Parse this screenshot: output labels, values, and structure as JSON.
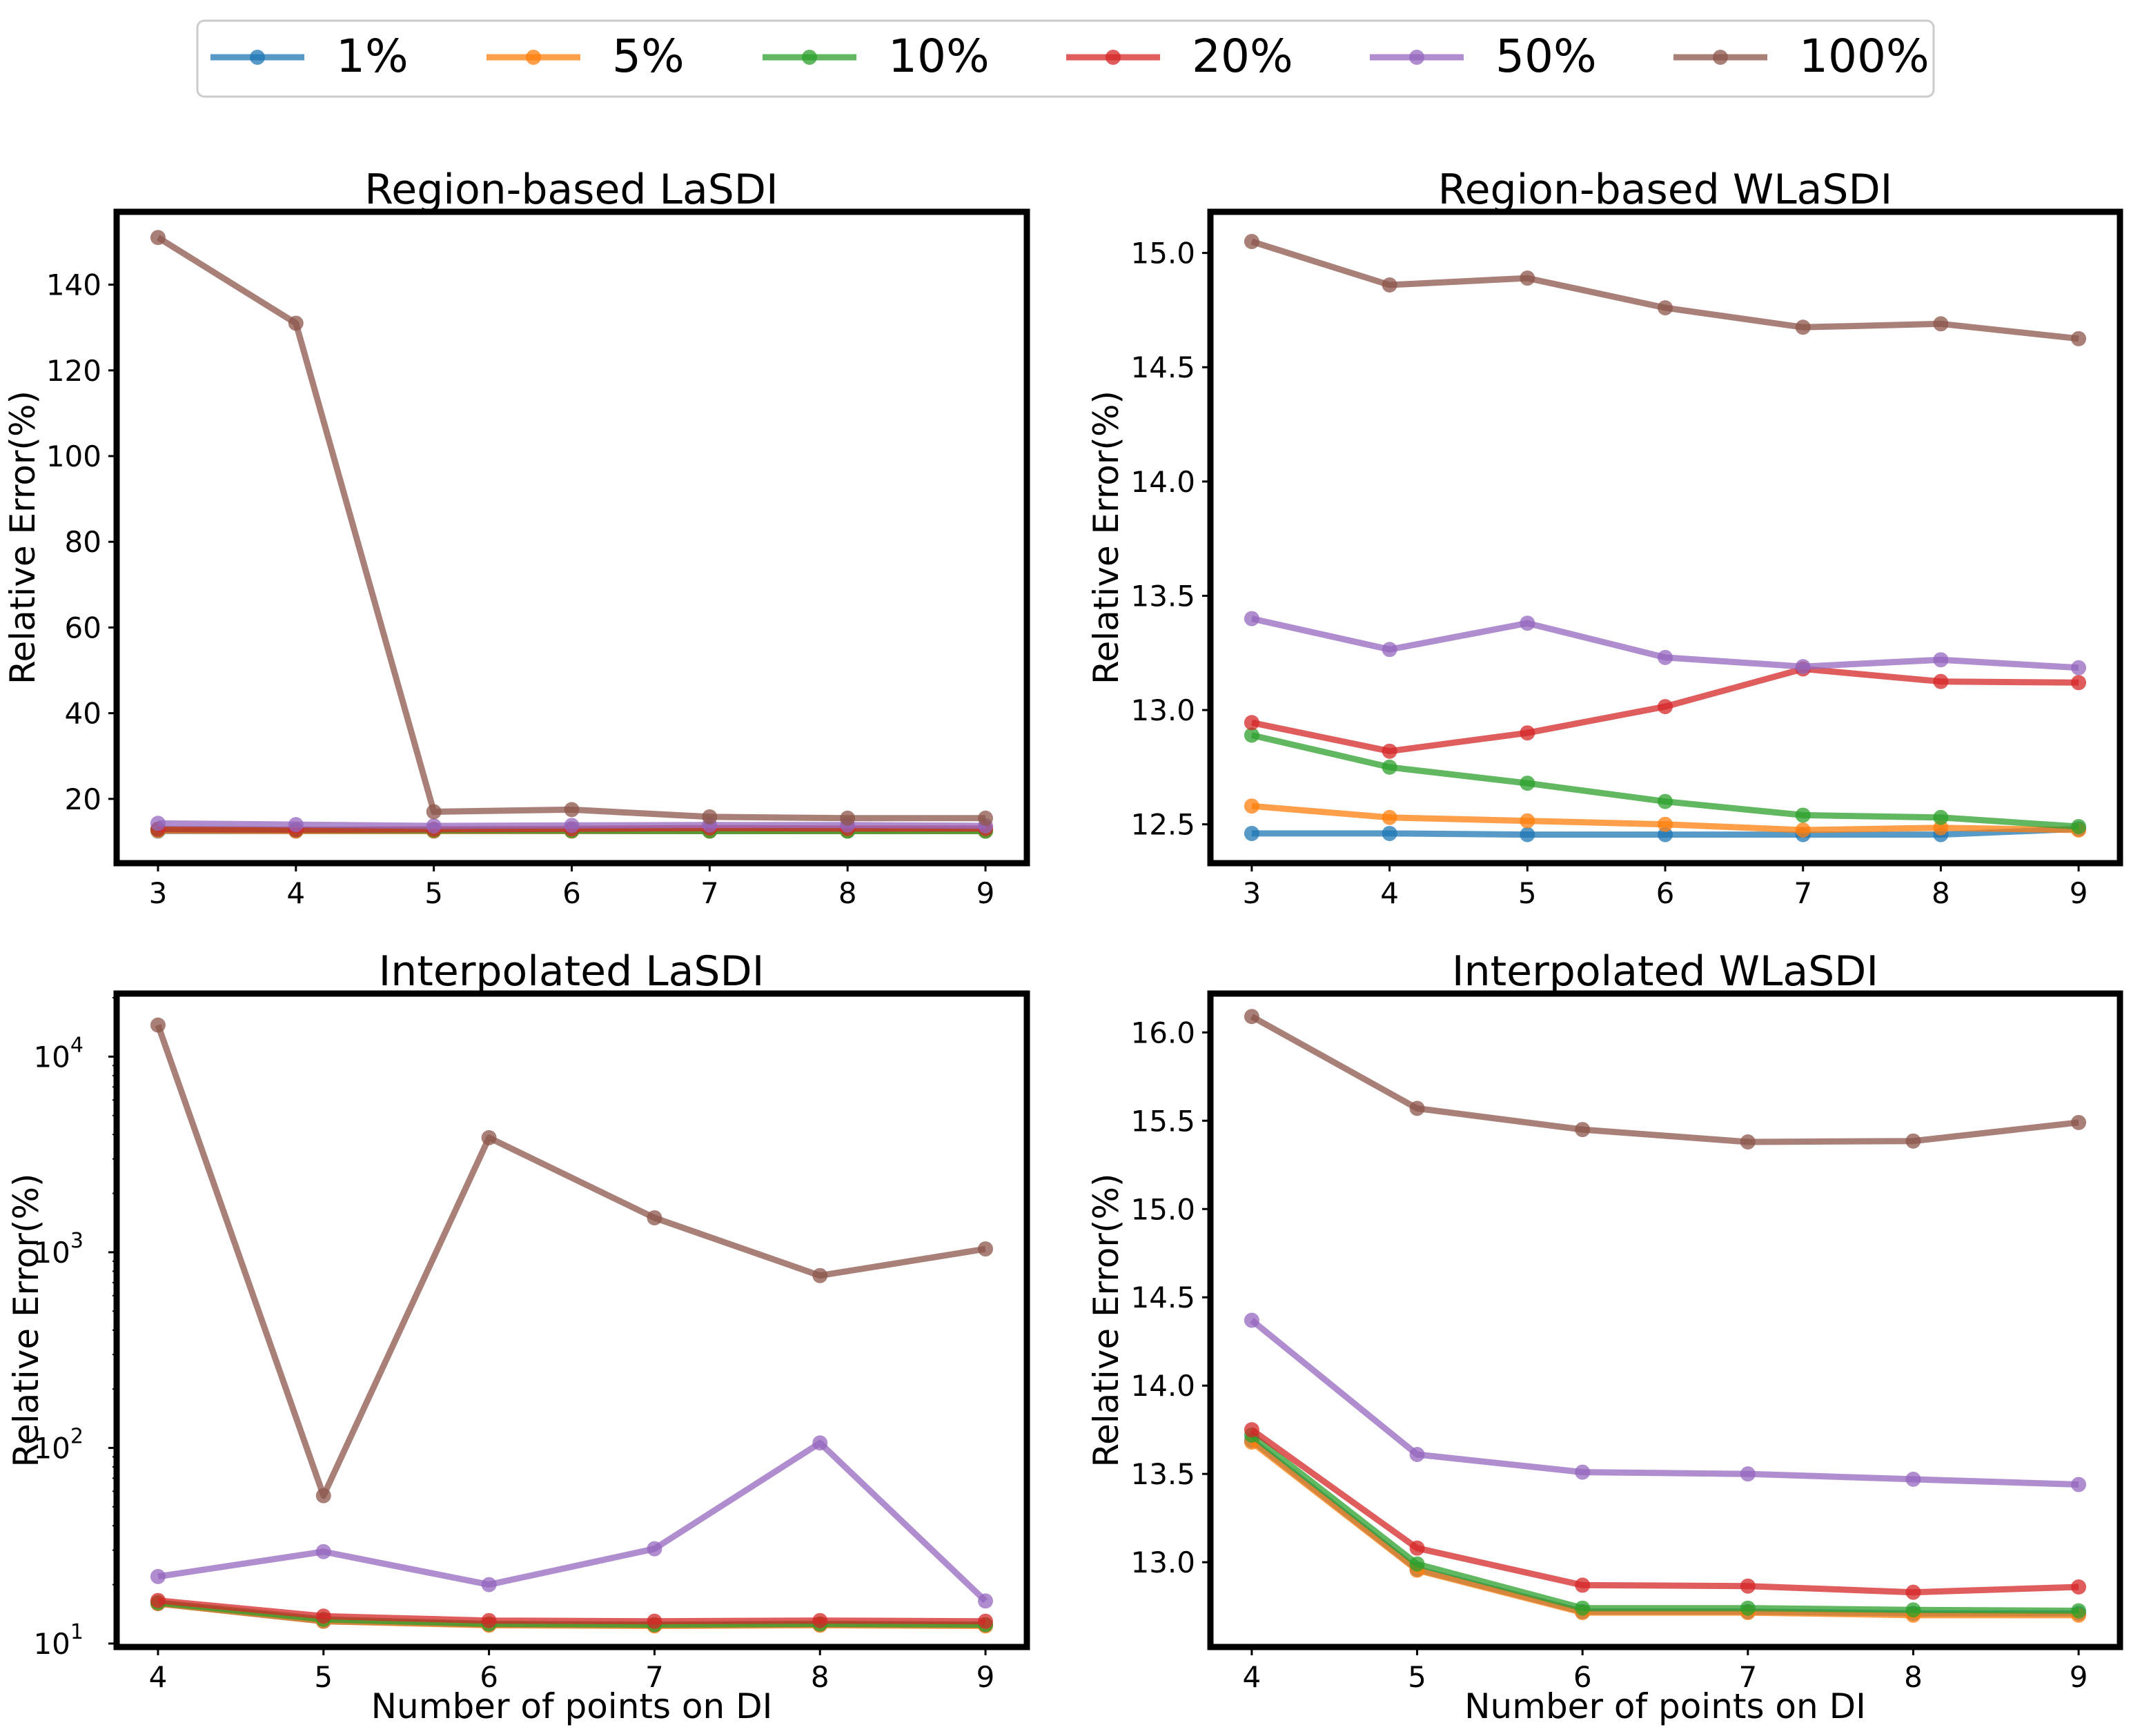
{
  "colors": {
    "1%": "#1f77b4",
    "5%": "#ff7f0e",
    "10%": "#2ca02c",
    "20%": "#d62728",
    "50%": "#9467bd",
    "100%": "#8c564b"
  },
  "legend": {
    "placement": "top-center",
    "entries": [
      "1%",
      "5%",
      "10%",
      "20%",
      "50%",
      "100%"
    ]
  },
  "chart_data": [
    {
      "type": "line",
      "title": "Region-based LaSDI",
      "xlabel": "",
      "ylabel": "Relative Error(%)",
      "yscale": "linear",
      "x": [
        3,
        4,
        5,
        6,
        7,
        8,
        9
      ],
      "xticks": [
        "3",
        "4",
        "5",
        "6",
        "7",
        "8",
        "9"
      ],
      "xlim": [
        2.7,
        9.3
      ],
      "ylim": [
        5,
        157
      ],
      "yticks": [
        20,
        40,
        60,
        80,
        100,
        120,
        140
      ],
      "ytick_labels": [
        "20",
        "40",
        "60",
        "80",
        "100",
        "120",
        "140"
      ],
      "grid": false,
      "series": [
        {
          "name": "1%",
          "values": [
            12.5,
            12.5,
            12.5,
            12.5,
            12.5,
            12.5,
            12.5
          ]
        },
        {
          "name": "5%",
          "values": [
            12.6,
            12.5,
            12.5,
            12.5,
            12.5,
            12.5,
            12.5
          ]
        },
        {
          "name": "10%",
          "values": [
            12.9,
            12.8,
            12.7,
            12.6,
            12.5,
            12.5,
            12.5
          ]
        },
        {
          "name": "20%",
          "values": [
            12.9,
            12.8,
            12.9,
            13.0,
            13.2,
            13.1,
            13.1
          ]
        },
        {
          "name": "50%",
          "values": [
            14.3,
            14.0,
            13.7,
            13.8,
            13.9,
            13.9,
            13.7
          ]
        },
        {
          "name": "100%",
          "values": [
            151,
            131,
            17,
            17.5,
            15.8,
            15.5,
            15.5
          ]
        }
      ]
    },
    {
      "type": "line",
      "title": "Region-based WLaSDI",
      "xlabel": "",
      "ylabel": "Relative Error(%)",
      "yscale": "linear",
      "x": [
        3,
        4,
        5,
        6,
        7,
        8,
        9
      ],
      "xticks": [
        "3",
        "4",
        "5",
        "6",
        "7",
        "8",
        "9"
      ],
      "xlim": [
        2.7,
        9.3
      ],
      "ylim": [
        12.33,
        15.18
      ],
      "yticks": [
        12.5,
        13.0,
        13.5,
        14.0,
        14.5,
        15.0
      ],
      "ytick_labels": [
        "12.5",
        "13.0",
        "13.5",
        "14.0",
        "14.5",
        "15.0"
      ],
      "grid": false,
      "series": [
        {
          "name": "1%",
          "values": [
            12.46,
            12.46,
            12.455,
            12.455,
            12.455,
            12.455,
            12.48
          ]
        },
        {
          "name": "5%",
          "values": [
            12.58,
            12.53,
            12.515,
            12.5,
            12.475,
            12.485,
            12.475
          ]
        },
        {
          "name": "10%",
          "values": [
            12.89,
            12.75,
            12.68,
            12.6,
            12.54,
            12.53,
            12.49
          ]
        },
        {
          "name": "20%",
          "values": [
            12.945,
            12.82,
            12.9,
            13.015,
            13.18,
            13.125,
            13.12
          ]
        },
        {
          "name": "50%",
          "values": [
            13.4,
            13.265,
            13.38,
            13.23,
            13.19,
            13.22,
            13.185
          ]
        },
        {
          "name": "100%",
          "values": [
            15.05,
            14.86,
            14.89,
            14.76,
            14.675,
            14.69,
            14.625
          ]
        }
      ]
    },
    {
      "type": "line",
      "title": "Interpolated LaSDI",
      "xlabel": "Number of points on DI",
      "ylabel": "Relative Error(%)",
      "yscale": "log",
      "x": [
        4,
        5,
        6,
        7,
        8,
        9
      ],
      "xticks": [
        "4",
        "5",
        "6",
        "7",
        "8",
        "9"
      ],
      "xlim": [
        3.75,
        9.25
      ],
      "ylim": [
        9.6,
        21000
      ],
      "yticks": [
        10,
        100,
        1000,
        10000
      ],
      "ytick_labels": [
        "10",
        "10",
        "10",
        "10"
      ],
      "ytick_exponents": [
        "1",
        "2",
        "3",
        "4"
      ],
      "grid": false,
      "series": [
        {
          "name": "1%",
          "values": [
            16,
            13,
            12.5,
            12.4,
            12.5,
            12.4
          ]
        },
        {
          "name": "5%",
          "values": [
            16,
            13,
            12.4,
            12.3,
            12.4,
            12.3
          ]
        },
        {
          "name": "10%",
          "values": [
            16.2,
            13.3,
            12.6,
            12.5,
            12.6,
            12.5
          ]
        },
        {
          "name": "20%",
          "values": [
            16.6,
            13.8,
            13.1,
            13,
            13.1,
            13
          ]
        },
        {
          "name": "50%",
          "values": [
            22,
            29.5,
            20,
            30.5,
            106,
            16.5
          ]
        },
        {
          "name": "100%",
          "values": [
            14500,
            57,
            3850,
            1500,
            760,
            1040
          ]
        }
      ]
    },
    {
      "type": "line",
      "title": "Interpolated WLaSDI",
      "xlabel": "Number of points on DI",
      "ylabel": "Relative Error(%)",
      "yscale": "linear",
      "x": [
        4,
        5,
        6,
        7,
        8,
        9
      ],
      "xticks": [
        "4",
        "5",
        "6",
        "7",
        "8",
        "9"
      ],
      "xlim": [
        3.75,
        9.25
      ],
      "ylim": [
        12.52,
        16.22
      ],
      "yticks": [
        13.0,
        13.5,
        14.0,
        14.5,
        15.0,
        15.5,
        16.0
      ],
      "ytick_labels": [
        "13.0",
        "13.5",
        "14.0",
        "14.5",
        "15.0",
        "15.5",
        "16.0"
      ],
      "grid": false,
      "series": [
        {
          "name": "1%",
          "values": [
            13.69,
            12.96,
            12.72,
            12.72,
            12.71,
            12.71
          ]
        },
        {
          "name": "5%",
          "values": [
            13.68,
            12.955,
            12.715,
            12.715,
            12.7,
            12.7
          ]
        },
        {
          "name": "10%",
          "values": [
            13.72,
            12.99,
            12.74,
            12.74,
            12.73,
            12.725
          ]
        },
        {
          "name": "20%",
          "values": [
            13.75,
            13.08,
            12.87,
            12.865,
            12.83,
            12.86
          ]
        },
        {
          "name": "50%",
          "values": [
            14.37,
            13.61,
            13.51,
            13.5,
            13.47,
            13.44
          ]
        },
        {
          "name": "100%",
          "values": [
            16.09,
            15.57,
            15.45,
            15.38,
            15.385,
            15.49
          ]
        }
      ]
    }
  ]
}
